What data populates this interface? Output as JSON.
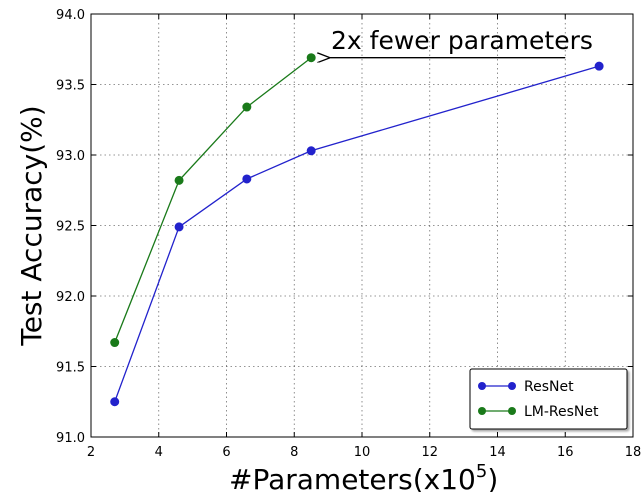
{
  "chart_data": {
    "type": "line",
    "xlabel": "#Parameters(x10",
    "xlabel_exponent": "5",
    "xlabel_suffix": ")",
    "ylabel": "Test Accuracy(%)",
    "xlim": [
      2,
      18
    ],
    "ylim": [
      91.0,
      94.0
    ],
    "xticks": [
      2,
      4,
      6,
      8,
      10,
      12,
      14,
      16,
      18
    ],
    "xtick_labels": [
      "2",
      "4",
      "6",
      "8",
      "10",
      "12",
      "14",
      "16",
      "18"
    ],
    "yticks": [
      91.0,
      91.5,
      92.0,
      92.5,
      93.0,
      93.5,
      94.0
    ],
    "ytick_labels": [
      "91.0",
      "91.5",
      "92.0",
      "92.5",
      "93.0",
      "93.5",
      "94.0"
    ],
    "grid": true,
    "grid_style": "dotted",
    "legend_position": "lower-right",
    "series": [
      {
        "name": "ResNet",
        "color": "#2222cc",
        "x": [
          2.7,
          4.6,
          6.6,
          8.5,
          17.0
        ],
        "y": [
          91.25,
          92.49,
          92.83,
          93.03,
          93.63
        ]
      },
      {
        "name": "LM-ResNet",
        "color": "#1a7a1a",
        "x": [
          2.7,
          4.6,
          6.6,
          8.5
        ],
        "y": [
          91.67,
          92.82,
          93.34,
          93.69
        ]
      }
    ],
    "annotation": {
      "text": "2x fewer parameters",
      "arrow_from": [
        16.0,
        93.69
      ],
      "arrow_to": [
        9.0,
        93.69
      ]
    }
  }
}
